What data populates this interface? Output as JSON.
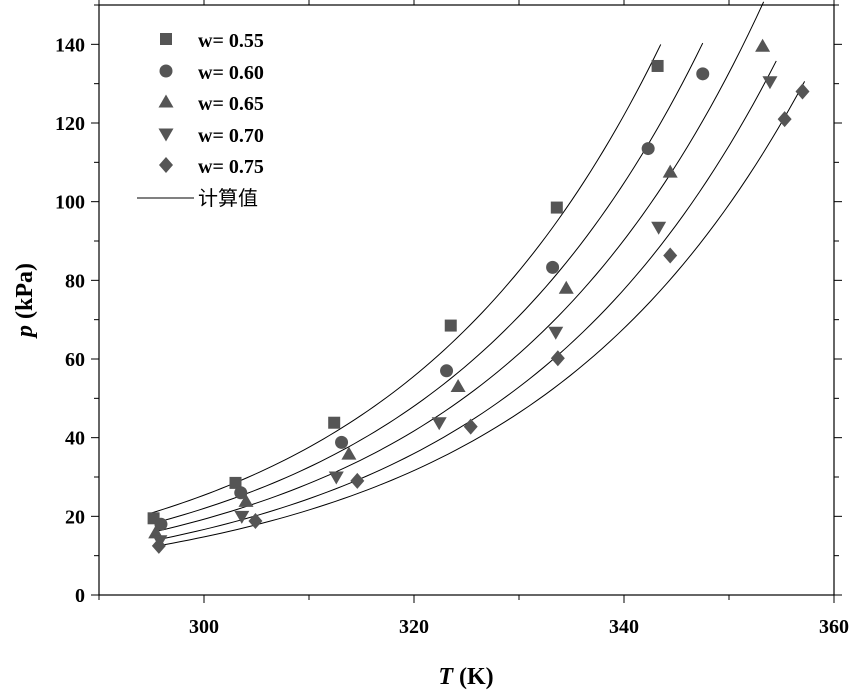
{
  "chart_data": {
    "type": "scatter",
    "title": "",
    "xlabel": {
      "symbol": "T",
      "unit": " (K)"
    },
    "ylabel": {
      "symbol": "p",
      "unit": " (kPa)"
    },
    "xlim": [
      290,
      360
    ],
    "ylim": [
      0,
      150
    ],
    "x_ticks": [
      300,
      320,
      340,
      360
    ],
    "y_ticks": [
      0,
      20,
      40,
      60,
      80,
      100,
      120,
      140
    ],
    "grid": false,
    "legend_position": "top-left",
    "marker_color": "#555555",
    "line_color": "#000000",
    "series": [
      {
        "name": "w= 0.55",
        "marker": "square",
        "x": [
          295.2,
          303.0,
          312.4,
          323.5,
          333.6,
          343.2
        ],
        "y": [
          19.5,
          28.5,
          43.8,
          68.5,
          98.5,
          134.5
        ]
      },
      {
        "name": "w= 0.60",
        "marker": "circle",
        "x": [
          295.9,
          303.5,
          313.1,
          323.1,
          333.2,
          342.3,
          347.5
        ],
        "y": [
          18.0,
          26.0,
          38.8,
          57.0,
          83.3,
          113.5,
          132.5
        ]
      },
      {
        "name": "w= 0.65",
        "marker": "triangle-up",
        "x": [
          295.4,
          304.0,
          313.8,
          324.2,
          334.5,
          344.4,
          353.2
        ],
        "y": [
          15.8,
          23.8,
          35.8,
          53.0,
          78.0,
          107.5,
          139.5
        ]
      },
      {
        "name": "w= 0.70",
        "marker": "triangle-down",
        "x": [
          295.8,
          303.6,
          312.6,
          322.4,
          333.5,
          343.3,
          353.9
        ],
        "y": [
          13.8,
          20.0,
          30.0,
          43.8,
          66.8,
          93.5,
          130.5
        ]
      },
      {
        "name": "w= 0.75",
        "marker": "diamond",
        "x": [
          295.7,
          304.9,
          314.6,
          325.4,
          333.7,
          344.4,
          355.3,
          357.0
        ],
        "y": [
          12.5,
          18.8,
          29.0,
          42.8,
          60.2,
          86.3,
          121.0,
          128.0
        ]
      }
    ],
    "fit_curves": [
      {
        "name": "w= 0.55",
        "a": 20.86,
        "b": 0.03925,
        "x_range": [
          295,
          343.5
        ]
      },
      {
        "name": "w= 0.60",
        "a": 18.11,
        "b": 0.039,
        "x_range": [
          295.5,
          347.5
        ]
      },
      {
        "name": "w= 0.65",
        "a": 15.89,
        "b": 0.0386,
        "x_range": [
          295.3,
          353.3
        ]
      },
      {
        "name": "w= 0.70",
        "a": 13.74,
        "b": 0.0385,
        "x_range": [
          295.6,
          354.5
        ]
      },
      {
        "name": "w= 0.75",
        "a": 12.21,
        "b": 0.0381,
        "x_range": [
          295.5,
          357.2
        ]
      }
    ],
    "fit_legend_label": "计算值"
  }
}
